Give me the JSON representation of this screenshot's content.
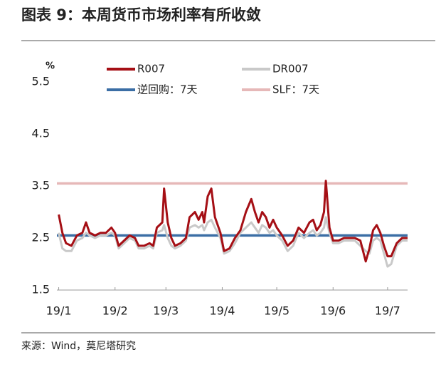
{
  "chart_data": {
    "type": "line",
    "title": "图表 9：本周货币市场利率有所收敛",
    "source": "来源：Wind，莫尼塔研究",
    "y_unit": "%",
    "x": [
      0,
      2,
      4,
      7,
      10,
      13,
      15,
      17,
      20,
      23,
      26,
      29,
      31,
      33,
      36,
      39,
      42,
      44,
      47,
      50,
      52,
      54,
      57,
      58,
      60,
      62,
      64,
      67,
      70,
      72,
      75,
      77,
      79,
      80,
      82,
      84,
      86,
      89,
      91,
      94,
      97,
      100,
      103,
      106,
      108,
      110,
      112,
      114,
      116,
      118,
      120,
      123,
      126,
      129,
      132,
      135,
      138,
      140,
      142,
      144,
      146,
      147,
      149,
      151,
      154,
      157,
      160,
      163,
      166,
      169,
      171,
      173,
      175,
      177,
      179,
      181,
      183,
      186,
      189,
      192
    ],
    "xlim": [
      -1,
      192
    ],
    "xticks": [
      {
        "value": 0,
        "label": "19/1"
      },
      {
        "value": 31,
        "label": "19/2"
      },
      {
        "value": 59,
        "label": "19/3"
      },
      {
        "value": 90,
        "label": "19/4"
      },
      {
        "value": 120,
        "label": "19/5"
      },
      {
        "value": 151,
        "label": "19/6"
      },
      {
        "value": 181,
        "label": "19/7"
      }
    ],
    "ylim": [
      1.5,
      5.5
    ],
    "yticks": [
      5.5,
      4.5,
      3.5,
      2.5,
      1.5
    ],
    "series": [
      {
        "name": "R007",
        "color": "#a50f15",
        "values": [
          2.95,
          2.6,
          2.4,
          2.35,
          2.55,
          2.6,
          2.8,
          2.6,
          2.55,
          2.6,
          2.6,
          2.7,
          2.6,
          2.35,
          2.45,
          2.55,
          2.5,
          2.35,
          2.35,
          2.4,
          2.35,
          2.7,
          2.8,
          3.45,
          2.8,
          2.5,
          2.35,
          2.4,
          2.5,
          2.9,
          3.0,
          2.85,
          3.0,
          2.8,
          3.3,
          3.45,
          2.9,
          2.6,
          2.25,
          2.3,
          2.5,
          2.65,
          3.0,
          3.25,
          3.0,
          2.8,
          3.0,
          2.9,
          2.7,
          2.85,
          2.7,
          2.55,
          2.35,
          2.45,
          2.7,
          2.6,
          2.8,
          2.85,
          2.65,
          2.75,
          3.0,
          3.6,
          2.7,
          2.45,
          2.45,
          2.5,
          2.5,
          2.5,
          2.45,
          2.05,
          2.3,
          2.65,
          2.75,
          2.6,
          2.35,
          2.15,
          2.15,
          2.4,
          2.5,
          2.5
        ]
      },
      {
        "name": "DR007",
        "color": "#c9c9c9",
        "values": [
          2.6,
          2.3,
          2.25,
          2.25,
          2.45,
          2.5,
          2.6,
          2.55,
          2.5,
          2.55,
          2.55,
          2.6,
          2.55,
          2.3,
          2.4,
          2.5,
          2.45,
          2.3,
          2.3,
          2.35,
          2.3,
          2.6,
          2.65,
          2.75,
          2.5,
          2.35,
          2.3,
          2.35,
          2.45,
          2.7,
          2.75,
          2.7,
          2.75,
          2.65,
          2.8,
          2.85,
          2.7,
          2.5,
          2.2,
          2.25,
          2.4,
          2.6,
          2.7,
          2.8,
          2.7,
          2.6,
          2.75,
          2.7,
          2.6,
          2.65,
          2.55,
          2.45,
          2.25,
          2.35,
          2.6,
          2.5,
          2.6,
          2.65,
          2.55,
          2.6,
          2.7,
          2.9,
          2.6,
          2.4,
          2.4,
          2.45,
          2.45,
          2.45,
          2.35,
          2.25,
          2.2,
          2.45,
          2.5,
          2.45,
          2.2,
          1.95,
          2.0,
          2.35,
          2.45,
          2.45
        ]
      }
    ],
    "hlines": [
      {
        "name": "逆回购：7天",
        "color": "#3b6ea5",
        "value": 2.55
      },
      {
        "name": "SLF：7天",
        "color": "#e6b8b8",
        "value": 3.55
      }
    ]
  }
}
